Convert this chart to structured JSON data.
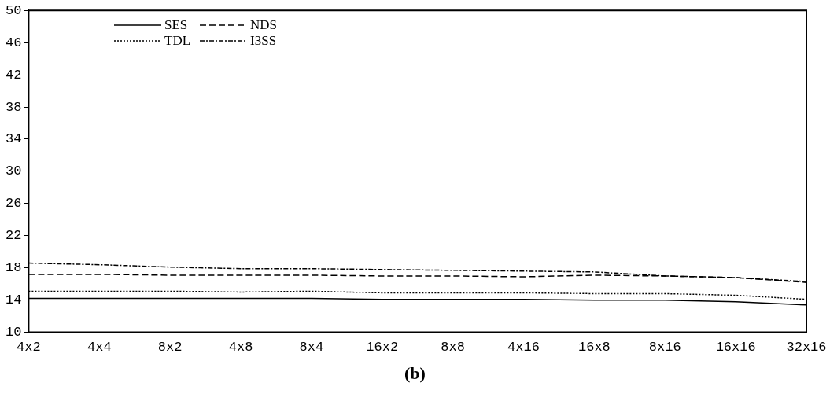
{
  "chart_data": {
    "type": "line",
    "categories": [
      "4x2",
      "4x4",
      "8x2",
      "4x8",
      "8x4",
      "16x2",
      "8x8",
      "4x16",
      "16x8",
      "8x16",
      "16x16",
      "32x16"
    ],
    "series": [
      {
        "name": "SES",
        "color": "#000000",
        "line_style": "solid",
        "values": [
          14.2,
          14.2,
          14.2,
          14.2,
          14.2,
          14.1,
          14.1,
          14.1,
          14.0,
          14.0,
          13.8,
          13.4
        ]
      },
      {
        "name": "NDS",
        "color": "#000000",
        "line_style": "dashed",
        "values": [
          17.2,
          17.2,
          17.1,
          17.1,
          17.1,
          17.0,
          17.0,
          16.9,
          17.1,
          17.0,
          16.8,
          16.2
        ]
      },
      {
        "name": "TDL",
        "color": "#000000",
        "line_style": "dotted",
        "values": [
          15.1,
          15.1,
          15.1,
          15.0,
          15.1,
          14.9,
          14.9,
          14.9,
          14.8,
          14.8,
          14.6,
          14.1
        ]
      },
      {
        "name": "I3SS",
        "color": "#000000",
        "line_style": "dashdot",
        "values": [
          18.6,
          18.4,
          18.1,
          17.9,
          17.9,
          17.8,
          17.7,
          17.6,
          17.5,
          17.0,
          16.8,
          16.3
        ]
      }
    ],
    "ylim": [
      10,
      50
    ],
    "yticks": [
      10,
      14,
      18,
      22,
      26,
      30,
      34,
      38,
      42,
      46,
      50
    ],
    "grid": false,
    "legend": "top left",
    "marker": "none",
    "annotations": [
      "(b)"
    ]
  }
}
